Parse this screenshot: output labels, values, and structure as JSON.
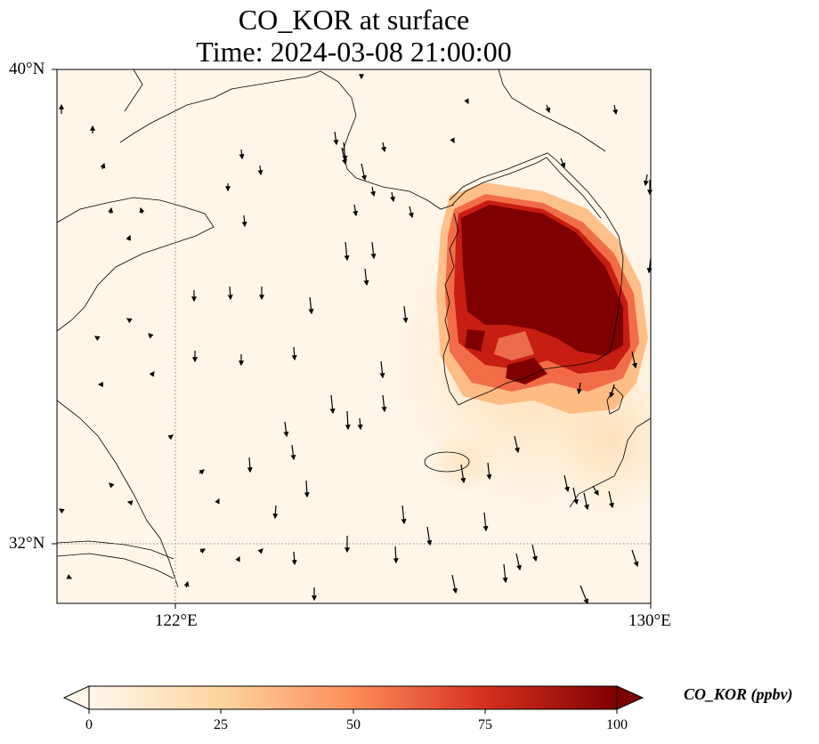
{
  "title": {
    "line1": "CO_KOR at surface",
    "line2": "Time: 2024-03-08 21:00:00"
  },
  "axes": {
    "lon_ticks": [
      "122°E",
      "130°E"
    ],
    "lat_ticks": [
      "40°N",
      "32°N"
    ],
    "extent": {
      "lon_min": 120,
      "lon_max": 130,
      "lat_min": 31,
      "lat_max": 40
    }
  },
  "colorbar": {
    "label": "CO_KOR (ppbv)",
    "ticks": [
      "0",
      "25",
      "50",
      "75",
      "100"
    ],
    "vmin": 0,
    "vmax": 100,
    "colormap": "OrRd",
    "extend": "both"
  },
  "colors": {
    "background": "#fff5e8",
    "max": "#7f0000",
    "high": "#c81d13",
    "mid": "#f4805a",
    "low": "#fdd49e",
    "coast": "#000000",
    "grid": "#888888"
  },
  "field": {
    "hotspot": "Korean peninsula",
    "max_ppbv": 100
  }
}
